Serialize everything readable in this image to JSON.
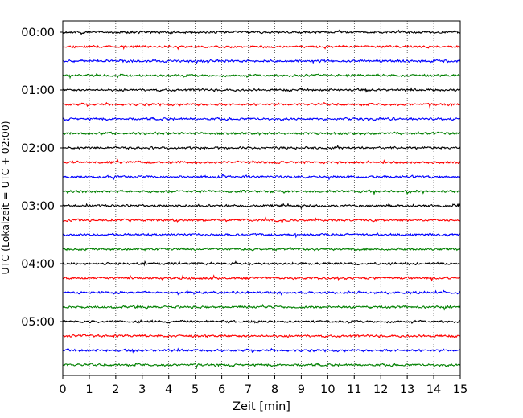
{
  "chart_data": {
    "type": "line",
    "title": "",
    "xlabel": "Zeit  [min]",
    "ylabel": "UTC (Lokalzeit = UTC + 02:00)",
    "xlim": [
      0,
      15
    ],
    "x_ticks": [
      0,
      1,
      2,
      3,
      4,
      5,
      6,
      7,
      8,
      9,
      10,
      11,
      12,
      13,
      14,
      15
    ],
    "x_tick_labels": [
      "0",
      "1",
      "2",
      "3",
      "4",
      "5",
      "6",
      "7",
      "8",
      "9",
      "10",
      "11",
      "12",
      "13",
      "14",
      "15"
    ],
    "y_tick_labels": [
      "00:00",
      "01:00",
      "02:00",
      "03:00",
      "04:00",
      "05:00"
    ],
    "y_tick_hours": [
      0,
      1,
      2,
      3,
      4,
      5
    ],
    "trace_interval_minutes": 15,
    "trace_count": 24,
    "trace_colors": [
      "#000000",
      "#ff0000",
      "#0000ff",
      "#008000"
    ],
    "grid": "vertical-dotted"
  }
}
